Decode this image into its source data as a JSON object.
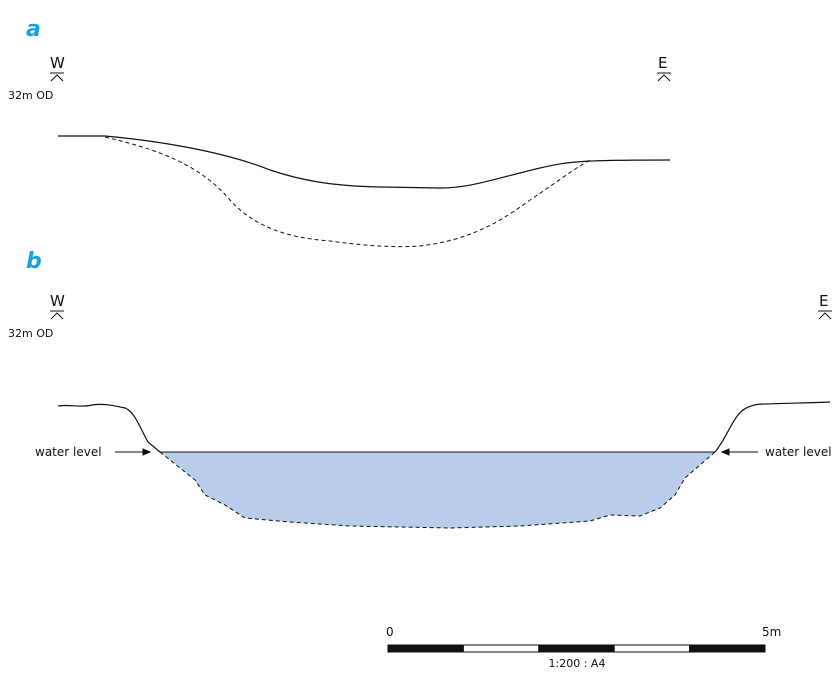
{
  "panel_a": {
    "label": "a",
    "west": "W",
    "east": "E",
    "datum": "32m OD"
  },
  "panel_b": {
    "label": "b",
    "west": "W",
    "east": "E",
    "datum": "32m OD",
    "water_left": "water level",
    "water_right": "water level"
  },
  "scale": {
    "start": "0",
    "end": "5m",
    "ratio": "1:200 : A4"
  }
}
